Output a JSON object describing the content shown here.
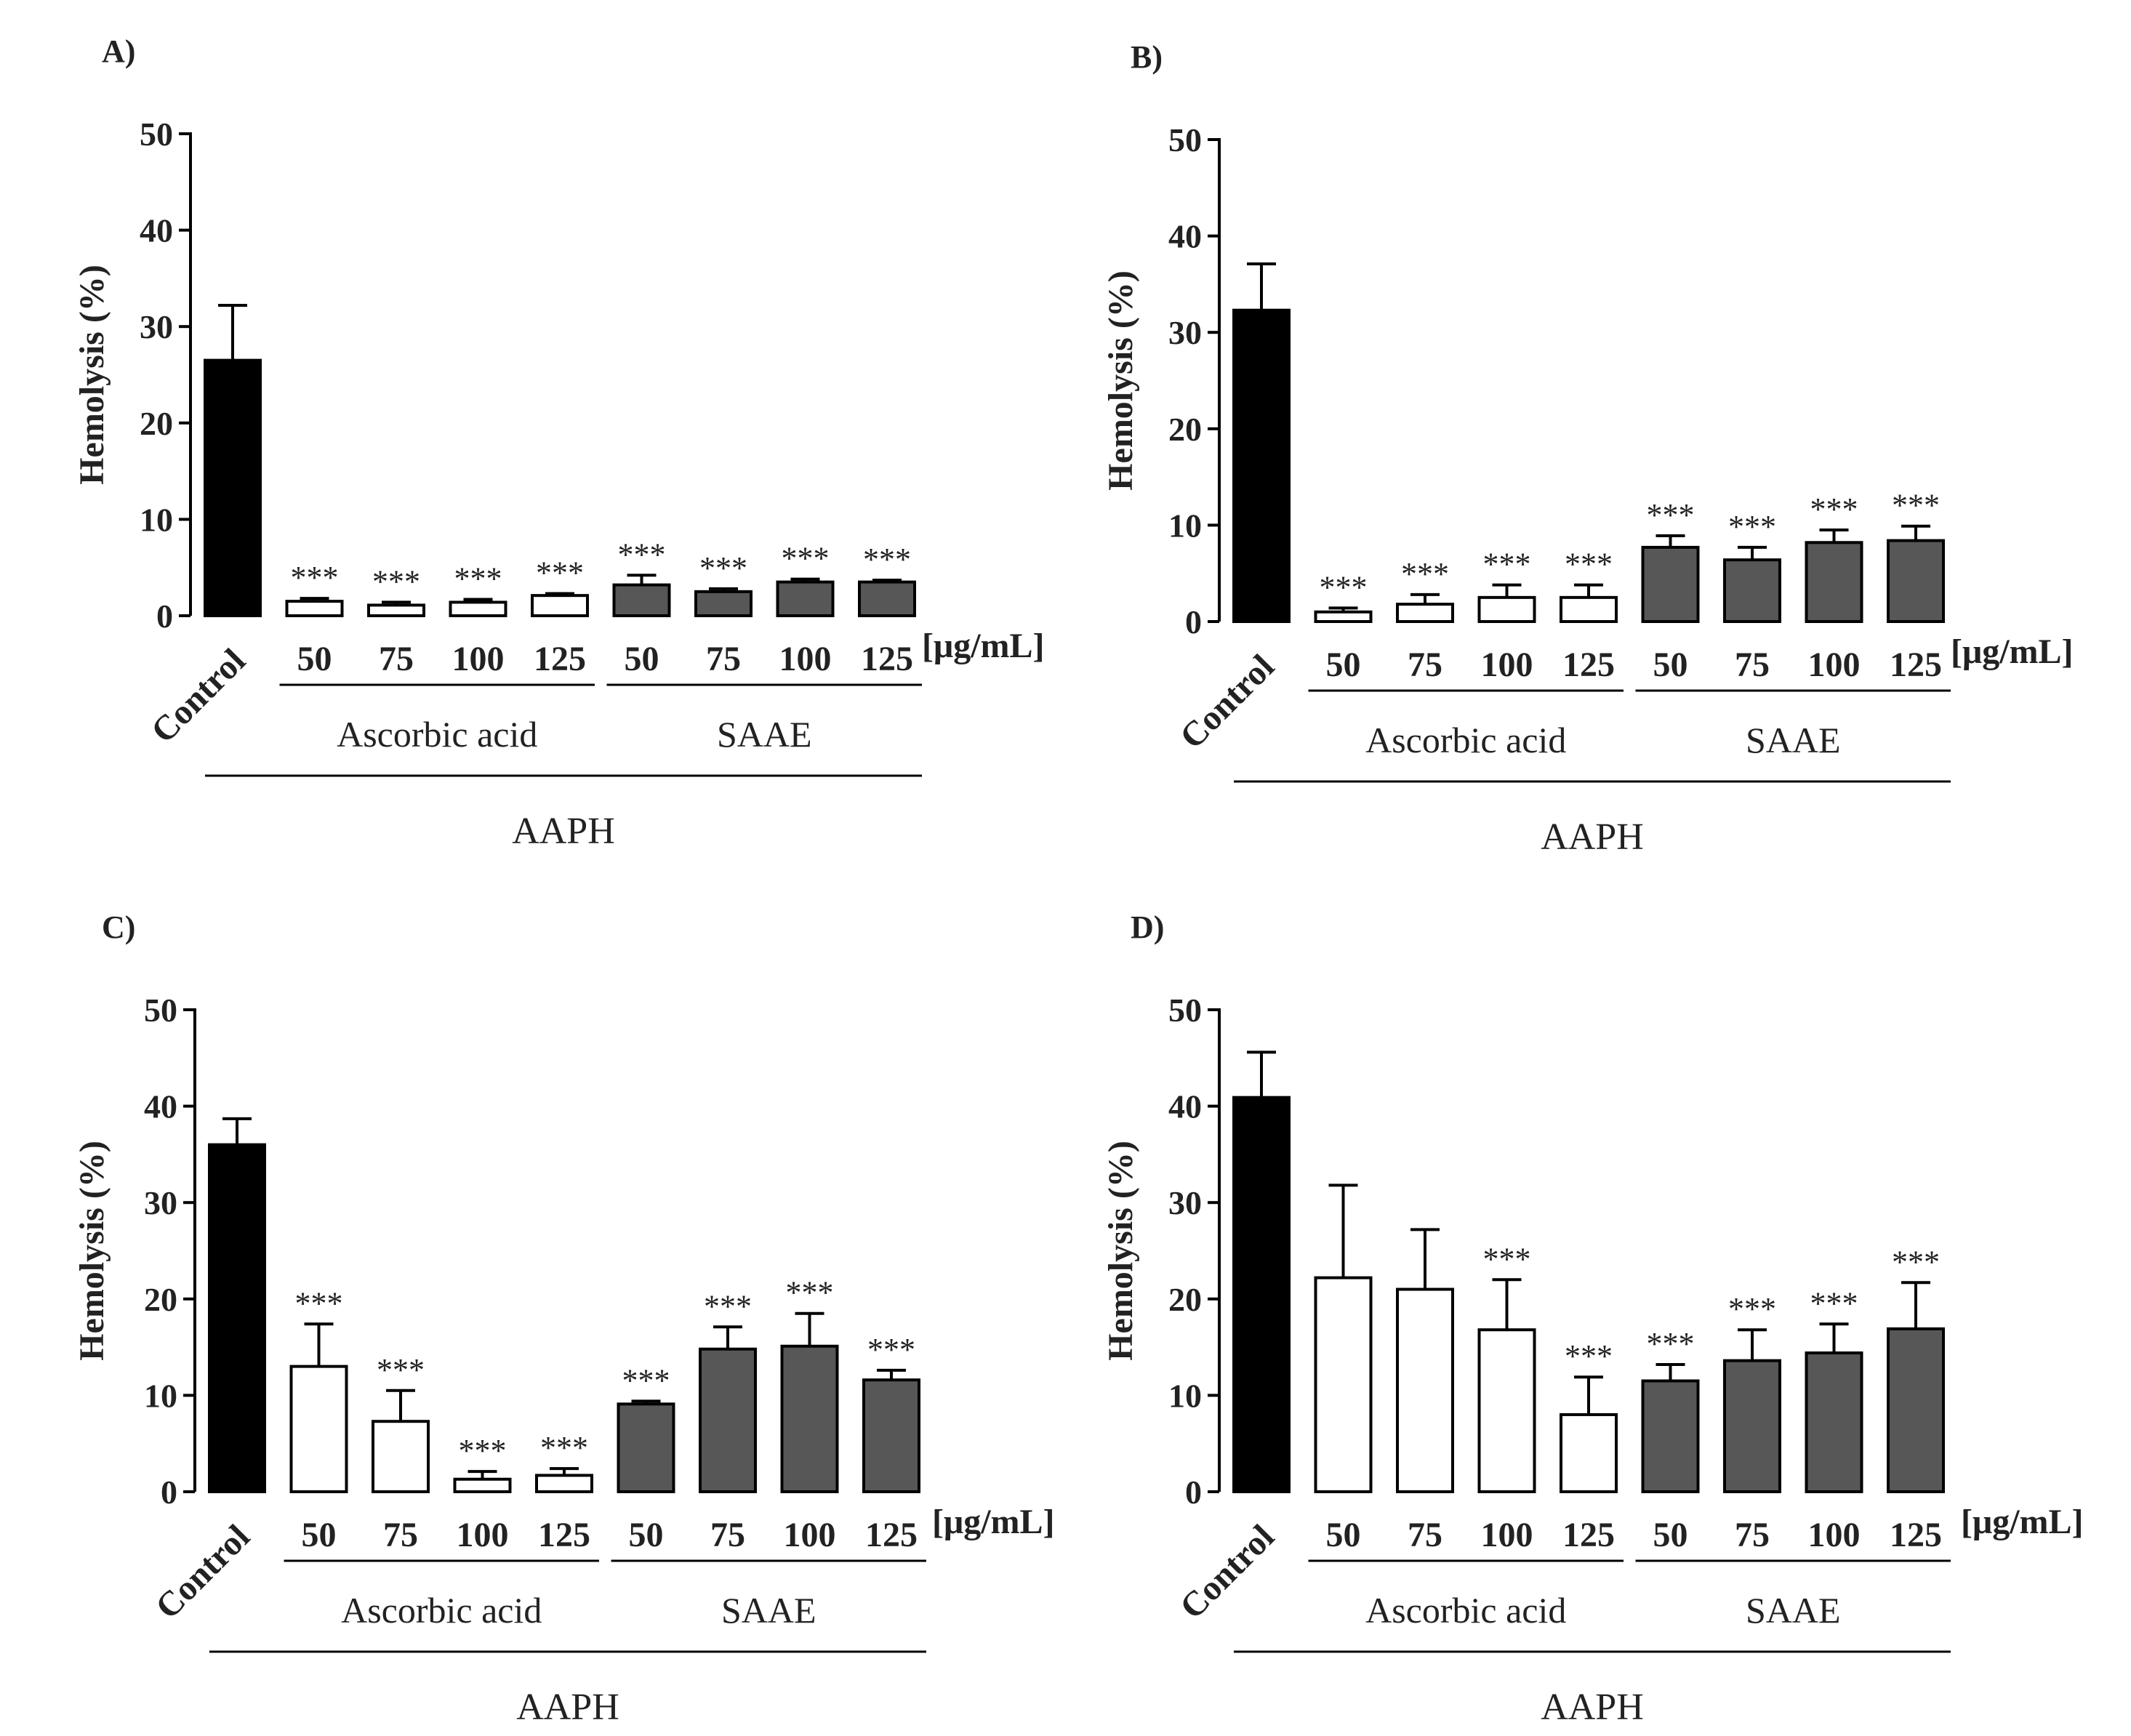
{
  "colors": {
    "control": "#000000",
    "ascorbic": "#ffffff",
    "saae": "#575757",
    "axis": "#000000"
  },
  "chart_data": [
    {
      "type": "bar",
      "panel": "A)",
      "ylabel": "Hemolysis (%)",
      "ylim": [
        0,
        50
      ],
      "yticks": [
        0,
        10,
        20,
        30,
        40,
        50
      ],
      "categories": [
        "Control",
        "50",
        "75",
        "100",
        "125",
        "50",
        "75",
        "100",
        "125"
      ],
      "groups": [
        "control",
        "ascorbic",
        "ascorbic",
        "ascorbic",
        "ascorbic",
        "saae",
        "saae",
        "saae",
        "saae"
      ],
      "values": [
        26.5,
        1.5,
        1.1,
        1.4,
        2.1,
        3.2,
        2.5,
        3.5,
        3.5
      ],
      "errors": [
        5.7,
        0.3,
        0.3,
        0.3,
        0.2,
        1.0,
        0.3,
        0.3,
        0.2
      ],
      "significance": [
        "",
        "***",
        "***",
        "***",
        "***",
        "***",
        "***",
        "***",
        "***"
      ],
      "unit": "[μg/mL]",
      "group_labels": [
        "Ascorbic acid",
        "SAAE"
      ],
      "treatment_label": "AAPH"
    },
    {
      "type": "bar",
      "panel": "B)",
      "ylabel": "Hemolysis (%)",
      "ylim": [
        0,
        50
      ],
      "yticks": [
        0,
        10,
        20,
        30,
        40,
        50
      ],
      "categories": [
        "Control",
        "50",
        "75",
        "100",
        "125",
        "50",
        "75",
        "100",
        "125"
      ],
      "groups": [
        "control",
        "ascorbic",
        "ascorbic",
        "ascorbic",
        "ascorbic",
        "saae",
        "saae",
        "saae",
        "saae"
      ],
      "values": [
        32.3,
        1.0,
        1.8,
        2.5,
        2.5,
        7.7,
        6.4,
        8.2,
        8.4
      ],
      "errors": [
        4.8,
        0.4,
        1.0,
        1.3,
        1.3,
        1.2,
        1.3,
        1.3,
        1.5
      ],
      "significance": [
        "",
        "***",
        "***",
        "***",
        "***",
        "***",
        "***",
        "***",
        "***"
      ],
      "unit": "[μg/mL]",
      "group_labels": [
        "Ascorbic acid",
        "SAAE"
      ],
      "treatment_label": "AAPH"
    },
    {
      "type": "bar",
      "panel": "C)",
      "ylabel": "Hemolysis (%)",
      "ylim": [
        0,
        50
      ],
      "yticks": [
        0,
        10,
        20,
        30,
        40,
        50
      ],
      "categories": [
        "Control",
        "50",
        "75",
        "100",
        "125",
        "50",
        "75",
        "100",
        "125"
      ],
      "groups": [
        "control",
        "ascorbic",
        "ascorbic",
        "ascorbic",
        "ascorbic",
        "saae",
        "saae",
        "saae",
        "saae"
      ],
      "values": [
        36.0,
        13.0,
        7.3,
        1.3,
        1.7,
        9.1,
        14.8,
        15.1,
        11.6
      ],
      "errors": [
        2.7,
        4.4,
        3.2,
        0.8,
        0.7,
        0.3,
        2.3,
        3.4,
        1.0
      ],
      "significance": [
        "",
        "***",
        "***",
        "***",
        "***",
        "***",
        "***",
        "***",
        "***"
      ],
      "unit": "[μg/mL]",
      "group_labels": [
        "Ascorbic acid",
        "SAAE"
      ],
      "treatment_label": "AAPH"
    },
    {
      "type": "bar",
      "panel": "D)",
      "ylabel": "Hemolysis (%)",
      "ylim": [
        0,
        50
      ],
      "yticks": [
        0,
        10,
        20,
        30,
        40,
        50
      ],
      "categories": [
        "Control",
        "50",
        "75",
        "100",
        "125",
        "50",
        "75",
        "100",
        "125"
      ],
      "groups": [
        "control",
        "ascorbic",
        "ascorbic",
        "ascorbic",
        "ascorbic",
        "saae",
        "saae",
        "saae",
        "saae"
      ],
      "values": [
        40.9,
        22.2,
        21.0,
        16.8,
        8.0,
        11.5,
        13.6,
        14.4,
        16.9
      ],
      "errors": [
        4.7,
        9.6,
        6.2,
        5.2,
        3.9,
        1.7,
        3.2,
        3.0,
        4.8
      ],
      "significance": [
        "",
        "",
        "",
        "***",
        "***",
        "***",
        "***",
        "***",
        "***"
      ],
      "unit": "[μg/mL]",
      "group_labels": [
        "Ascorbic acid",
        "SAAE"
      ],
      "treatment_label": "AAPH"
    }
  ]
}
